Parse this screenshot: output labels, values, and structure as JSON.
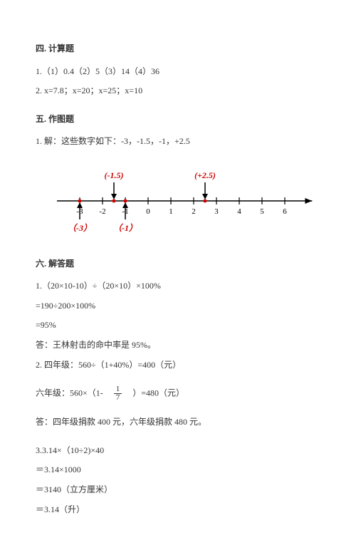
{
  "section4": {
    "title": "四. 计算题",
    "line1": "1.（1）0.4（2）5（3）14（4）36",
    "line2": "2. x=7.8；x=20；x=25；x=10"
  },
  "section5": {
    "title": "五. 作图题",
    "line1": "1. 解：这些数字如下：-3，-1.5，-1，+2.5",
    "numberline": {
      "ticks": [
        -3,
        -2,
        -1,
        0,
        1,
        2,
        3,
        4,
        5,
        6
      ],
      "points": [
        {
          "value": -3,
          "label": "（-3）",
          "labelColor": "#d00000",
          "labelPos": "below",
          "arrow": true
        },
        {
          "value": -1.5,
          "label": "(-1.5)",
          "labelColor": "#d00000",
          "labelPos": "above",
          "arrow": true
        },
        {
          "value": -1,
          "label": "（-1）",
          "labelColor": "#d00000",
          "labelPos": "below",
          "arrow": true
        },
        {
          "value": 2.5,
          "label": "(+2.5)",
          "labelColor": "#d00000",
          "labelPos": "above",
          "arrow": true
        }
      ],
      "axisColor": "#000000",
      "tickLabelFontsize": 11,
      "pointLabelFontsize": 12,
      "xStart": -4,
      "xEnd": 7.2,
      "tickSpacingPx": 32
    }
  },
  "section6": {
    "title": "六. 解答题",
    "lines": [
      "1.（20×10-10）÷（20×10）×100%",
      "=190÷200×100%",
      "=95%",
      "答：王林射击的命中率是 95%。",
      "2. 四年级：560÷（1+40%）=400（元）",
      {
        "type": "frac",
        "prefix": "六年级：560×（1-　",
        "numerator": "1",
        "denominator": "7",
        "suffix": "　）=480（元）"
      },
      "答：四年级捐款 400 元，六年级捐款 480 元。",
      "3.3.14×（10÷2)×40",
      "＝3.14×1000",
      "＝3140（立方厘米）",
      "＝3.14（升）"
    ]
  }
}
